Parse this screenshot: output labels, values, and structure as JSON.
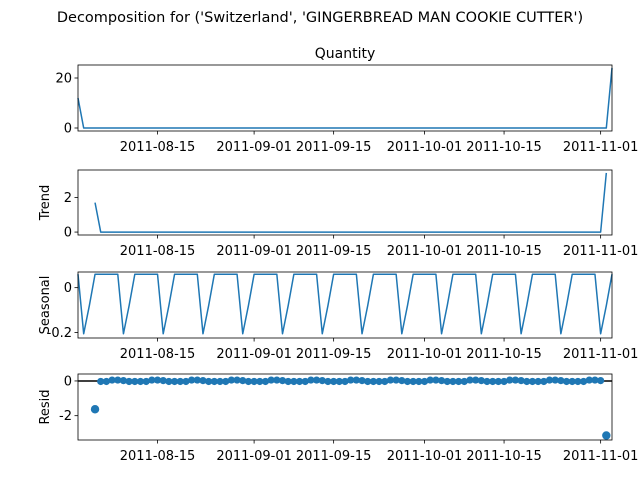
{
  "title": "Decomposition for ('Switzerland', 'GINGERBREAD MAN COOKIE CUTTER')",
  "chart_data": {
    "type": "line",
    "x_start": "2011-08-01",
    "x_end": "2011-11-03",
    "xlim": [
      "2011-08-01",
      "2011-11-03"
    ],
    "x_tick_labels": [
      "2011-08-15",
      "2011-09-01",
      "2011-09-15",
      "2011-10-01",
      "2011-10-15",
      "2011-11-01"
    ],
    "panels": [
      {
        "name": "quantity",
        "kind": "line",
        "title": "Quantity",
        "ylabel": "",
        "ylim": [
          -1.2,
          25.2
        ],
        "y_ticks": [
          0,
          20
        ],
        "x": [
          "2011-08-01",
          "2011-08-02",
          "2011-08-03",
          "2011-11-01",
          "2011-11-02",
          "2011-11-03"
        ],
        "values": [
          12,
          0,
          0,
          0,
          0,
          24
        ]
      },
      {
        "name": "trend",
        "kind": "line",
        "title": "",
        "ylabel": "Trend",
        "ylim": [
          -0.17,
          3.6
        ],
        "y_ticks": [
          0,
          2
        ],
        "x": [
          "2011-08-04",
          "2011-08-05",
          "2011-11-01",
          "2011-11-02"
        ],
        "values": [
          1.71,
          0,
          0,
          3.43
        ]
      },
      {
        "name": "seasonal",
        "kind": "line",
        "title": "",
        "ylabel": "Seasonal",
        "ylim": [
          -0.225,
          0.07
        ],
        "y_ticks": [
          0.0,
          -0.2
        ],
        "weekly_pattern": [
          0.06,
          -0.206,
          -0.08,
          0.06,
          0.06,
          0.06,
          0.06
        ],
        "pattern_start": "2011-08-01"
      },
      {
        "name": "resid",
        "kind": "scatter",
        "title": "",
        "ylabel": "Resid",
        "ylim": [
          -3.4,
          0.4
        ],
        "y_ticks": [
          0,
          -2
        ],
        "zero_line": true,
        "points": [
          {
            "x": "2011-08-04",
            "y": -1.63
          },
          {
            "x": "2011-11-02",
            "y": -3.14
          }
        ],
        "near_zero_pattern": [
          -0.03,
          -0.03,
          0.05,
          0.05,
          0.02,
          -0.03,
          -0.03
        ],
        "near_zero_start": "2011-08-05",
        "near_zero_end": "2011-11-01"
      }
    ]
  }
}
